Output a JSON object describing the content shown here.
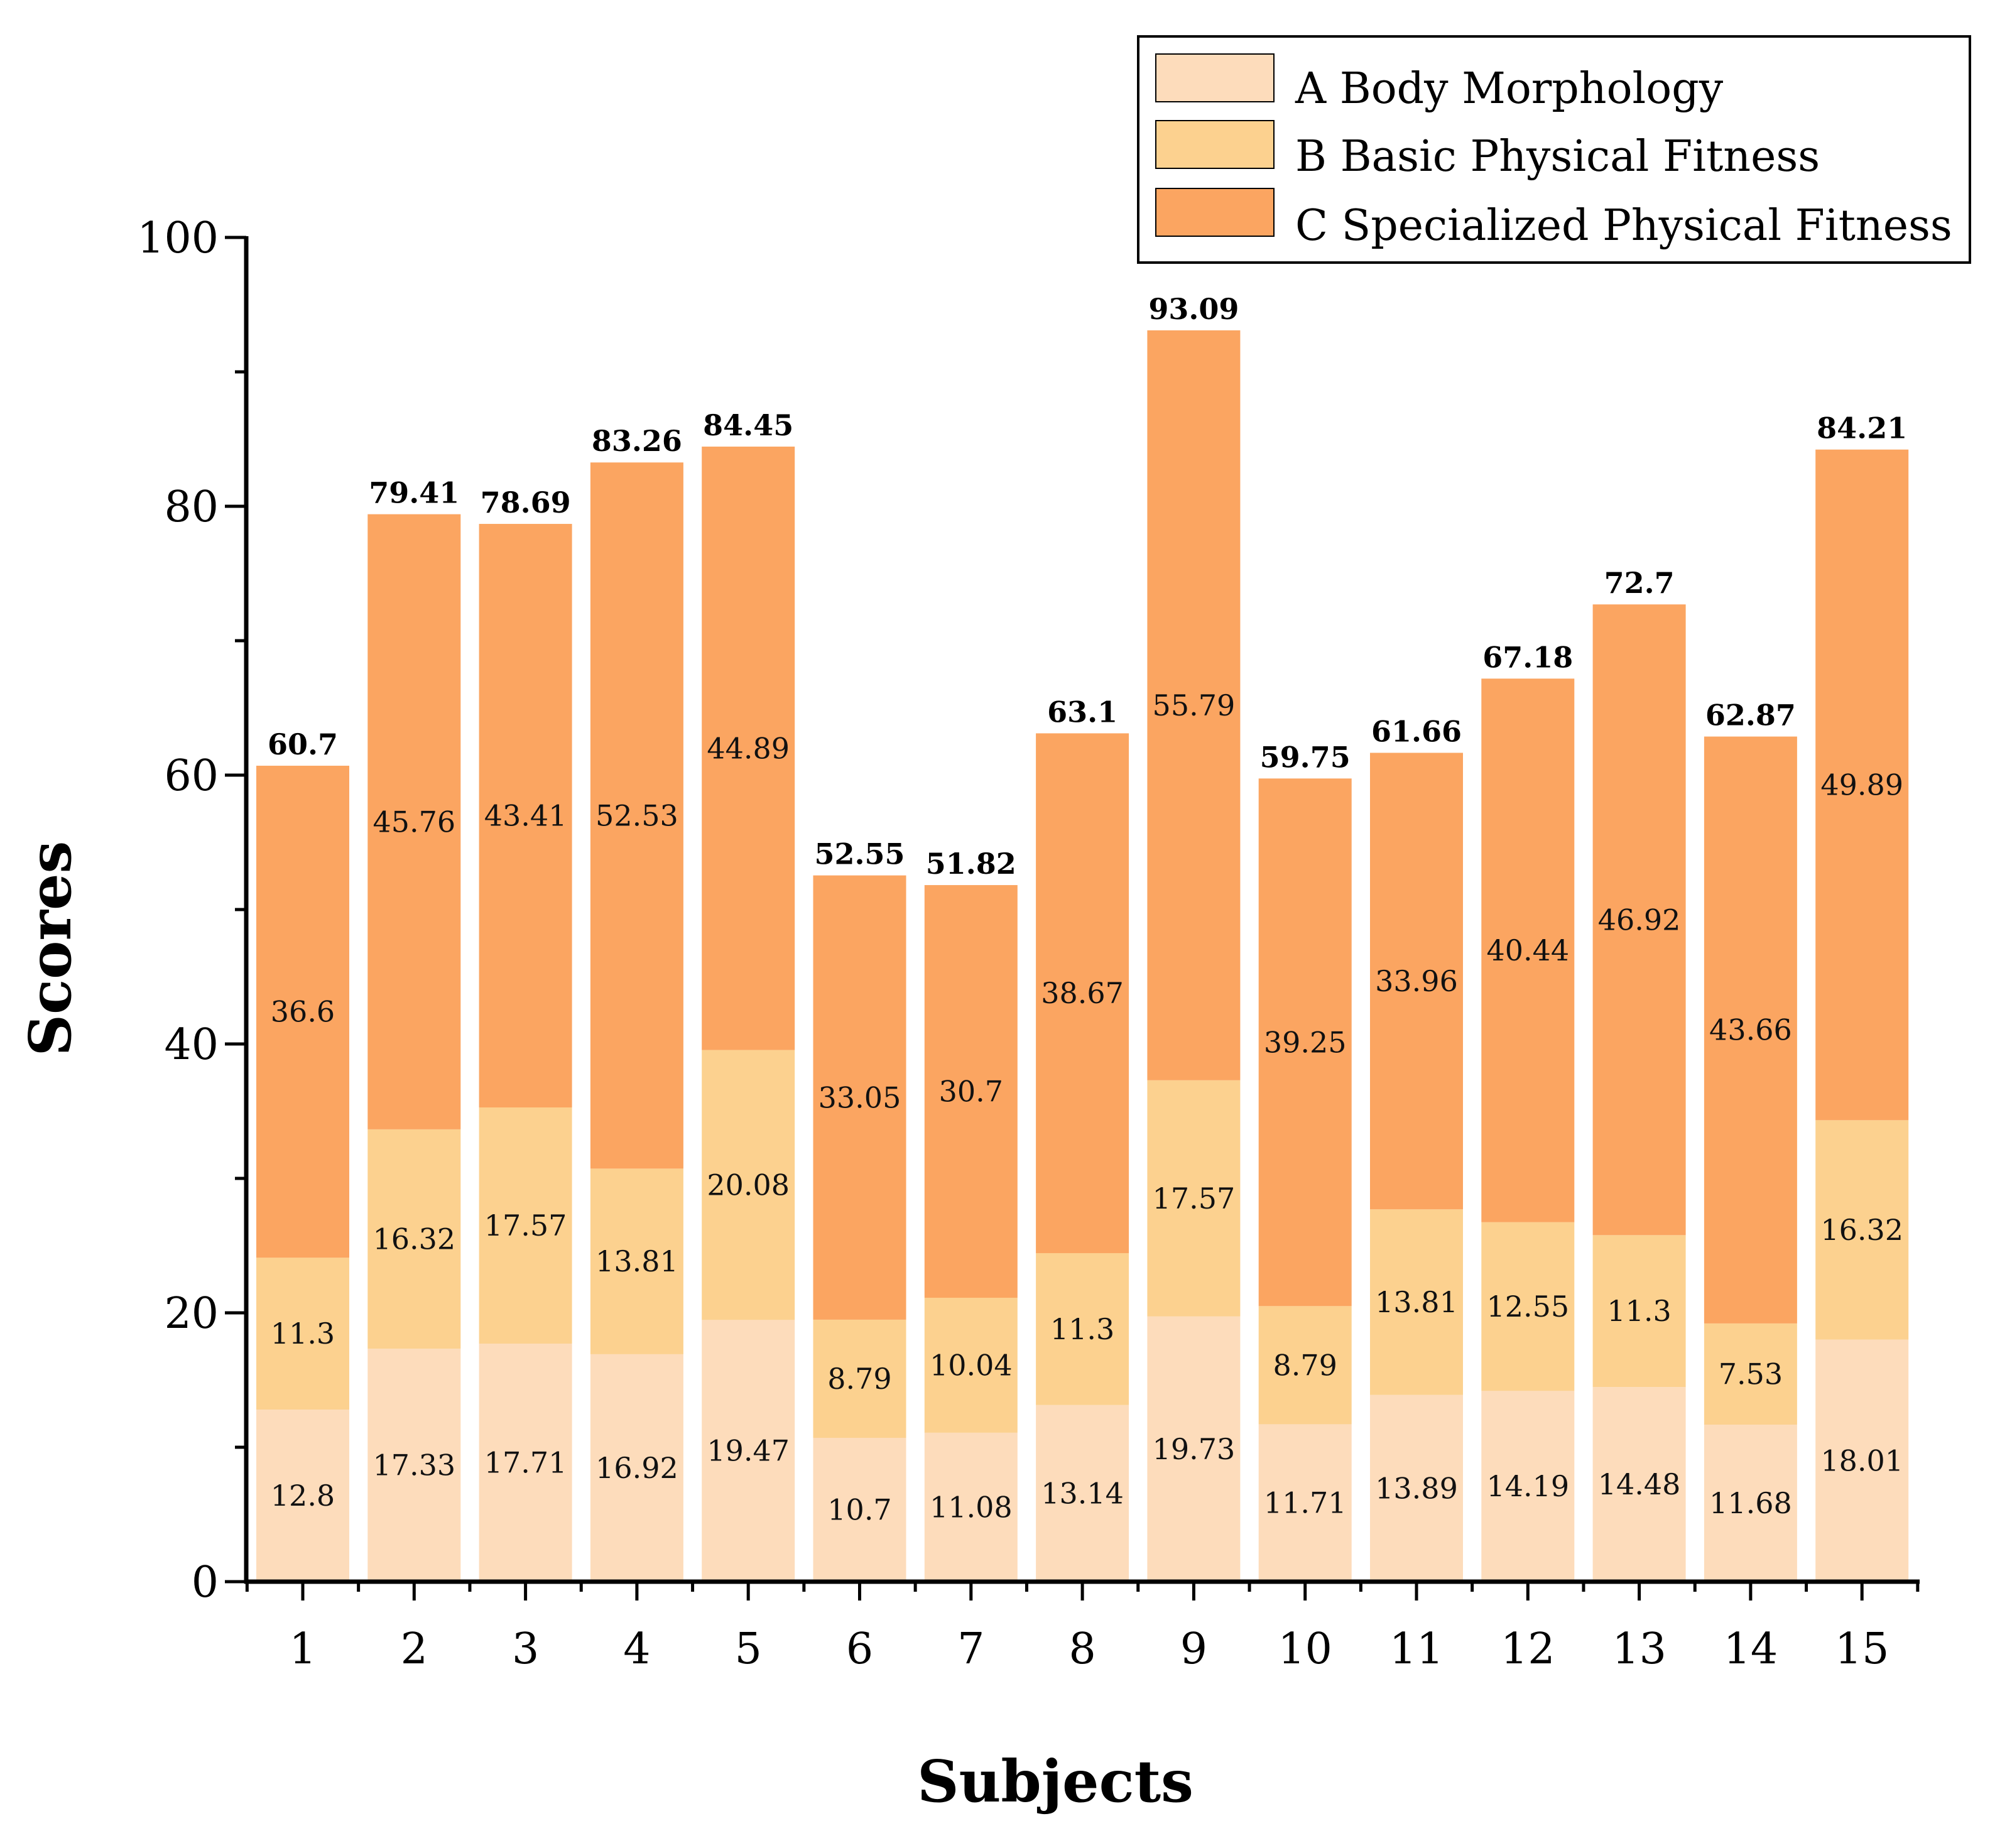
{
  "chart_data": {
    "type": "bar",
    "stacked": true,
    "xlabel": "Subjects",
    "ylabel": "Scores",
    "ylim": [
      0,
      100
    ],
    "yticks": [
      0,
      20,
      40,
      60,
      80,
      100
    ],
    "categories": [
      "1",
      "2",
      "3",
      "4",
      "5",
      "6",
      "7",
      "8",
      "9",
      "10",
      "11",
      "12",
      "13",
      "14",
      "15"
    ],
    "series": [
      {
        "name": "A Body Morphology",
        "color": "#FDDCBB",
        "values": [
          12.8,
          17.33,
          17.71,
          16.92,
          19.47,
          10.7,
          11.08,
          13.14,
          19.73,
          11.71,
          13.89,
          14.19,
          14.48,
          11.68,
          18.01
        ]
      },
      {
        "name": "B Basic Physical Fitness",
        "color": "#FCD18F",
        "values": [
          11.3,
          16.32,
          17.57,
          13.81,
          20.08,
          8.79,
          10.04,
          11.3,
          17.57,
          8.79,
          13.81,
          12.55,
          11.3,
          7.53,
          16.32
        ]
      },
      {
        "name": "C Specialized Physical Fitness",
        "color": "#FBA561",
        "values": [
          36.6,
          45.76,
          43.41,
          52.53,
          44.89,
          33.05,
          30.7,
          38.67,
          55.79,
          39.25,
          33.96,
          40.44,
          46.92,
          43.66,
          49.89
        ]
      }
    ],
    "totals": [
      "60.7",
      "79.41",
      "78.69",
      "83.26",
      "84.45",
      "52.55",
      "51.82",
      "63.1",
      "93.09",
      "59.75",
      "61.66",
      "67.18",
      "72.7",
      "62.87",
      "84.21"
    ],
    "legend_position": "top-right"
  }
}
